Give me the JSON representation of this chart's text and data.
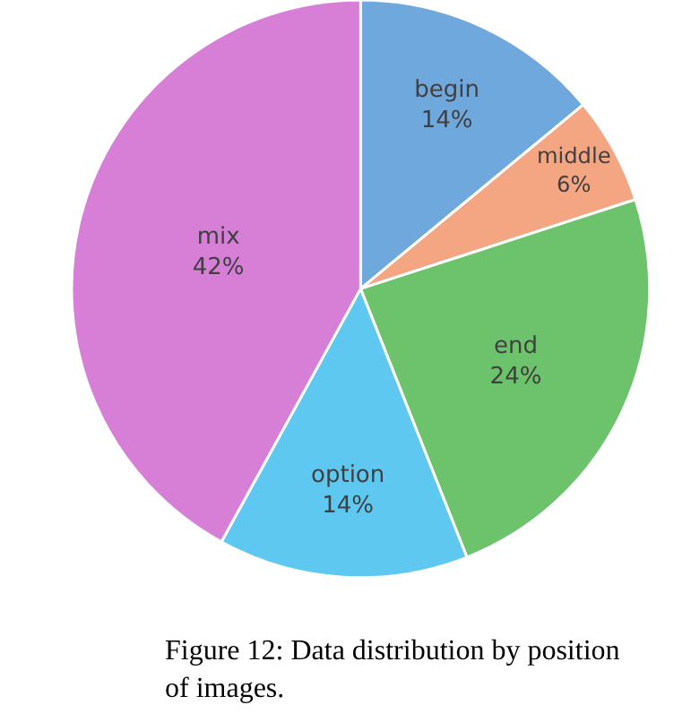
{
  "chart_data": {
    "type": "pie",
    "categories": [
      "begin",
      "middle",
      "end",
      "option",
      "mix"
    ],
    "values": [
      14,
      6,
      24,
      14,
      42
    ],
    "colors": [
      "#6fa8dc",
      "#f4a582",
      "#6cc36c",
      "#5fc8f0",
      "#d77fd7"
    ],
    "value_labels": [
      "14%",
      "6%",
      "24%",
      "14%",
      "42%"
    ],
    "annotations": [
      "Figure 12: Data distribution by position of images."
    ]
  }
}
